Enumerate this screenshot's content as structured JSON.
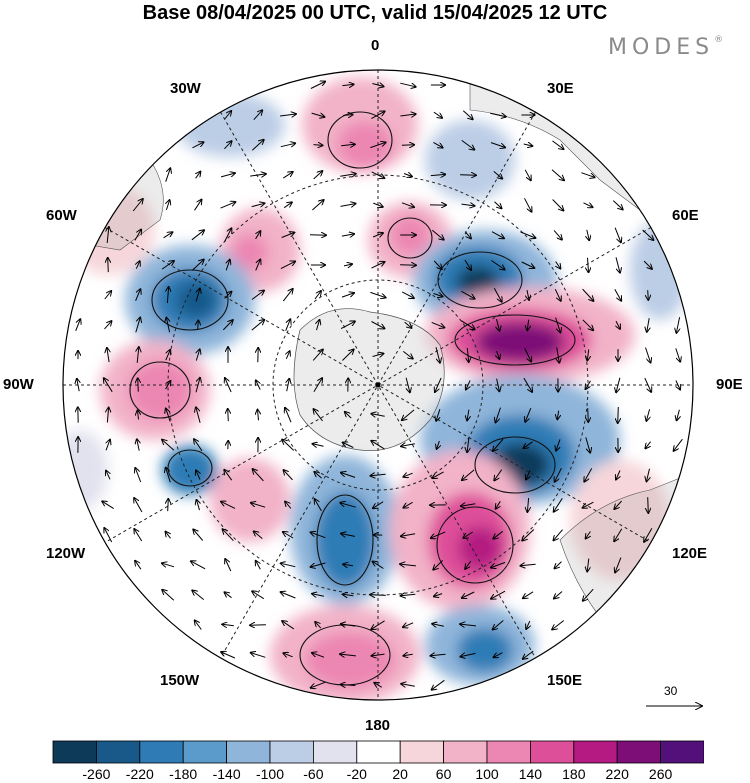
{
  "title": "Base 08/04/2025 00 UTC, valid 15/04/2025 12 UTC",
  "brand": "MODES",
  "brand_mark": "®",
  "longitude_labels": {
    "top": "0",
    "top_right": "30E",
    "right_upper": "60E",
    "right": "90E",
    "right_lower": "120E",
    "bottom_right": "150E",
    "bottom": "180",
    "bottom_left": "150W",
    "left_lower": "120W",
    "left": "90W",
    "left_upper": "60W",
    "top_left": "30W"
  },
  "wind_scale_label": "30",
  "colorbar": {
    "ticks": [
      "-260",
      "-220",
      "-180",
      "-140",
      "-100",
      "-60",
      "-20",
      "20",
      "60",
      "100",
      "140",
      "180",
      "220",
      "260"
    ],
    "colors": [
      "#0e3a5a",
      "#19598a",
      "#2f7bb5",
      "#5a9bcc",
      "#8fb5da",
      "#bccde6",
      "#e2e2ef",
      "#ffffff",
      "#f6d6da",
      "#f2b2c8",
      "#ec86b2",
      "#de4f9a",
      "#b41a82",
      "#7d0d77",
      "#54107a"
    ]
  }
}
